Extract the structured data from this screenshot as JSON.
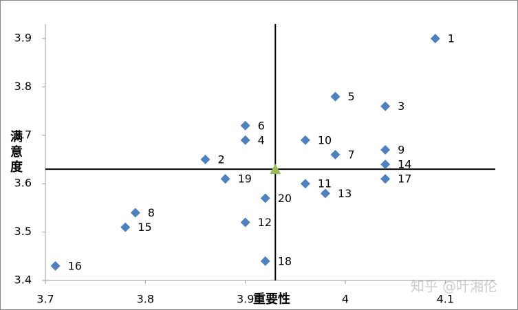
{
  "chart_data": {
    "type": "scatter",
    "x_label": "重要性",
    "y_label": "满意度",
    "xlim": [
      3.7,
      4.15
    ],
    "ylim": [
      3.4,
      3.93
    ],
    "xticks": [
      3.7,
      3.8,
      3.9,
      4,
      4.1
    ],
    "yticks": [
      3.4,
      3.5,
      3.6,
      3.7,
      3.8,
      3.9
    ],
    "series": [
      {
        "color": "#4f81bd",
        "labels": [
          "1",
          "2",
          "3",
          "4",
          "5",
          "6",
          "7",
          "8",
          "9",
          "10",
          "11",
          "12",
          "13",
          "14",
          "15",
          "16",
          "17",
          "18",
          "19",
          "20"
        ],
        "x": [
          4.09,
          3.86,
          4.04,
          3.9,
          3.99,
          3.9,
          3.99,
          3.79,
          4.04,
          3.96,
          3.96,
          3.9,
          3.98,
          4.04,
          3.78,
          3.71,
          4.04,
          3.92,
          3.88,
          3.92
        ],
        "values": [
          3.9,
          3.65,
          3.76,
          3.69,
          3.78,
          3.72,
          3.66,
          3.54,
          3.67,
          3.69,
          3.6,
          3.52,
          3.58,
          3.64,
          3.51,
          3.43,
          3.61,
          3.44,
          3.61,
          3.57
        ]
      }
    ],
    "reference": {
      "x": 3.93,
      "y": 3.63,
      "color": "#9bbb59"
    },
    "watermark": "知乎 @叶湘伦"
  }
}
